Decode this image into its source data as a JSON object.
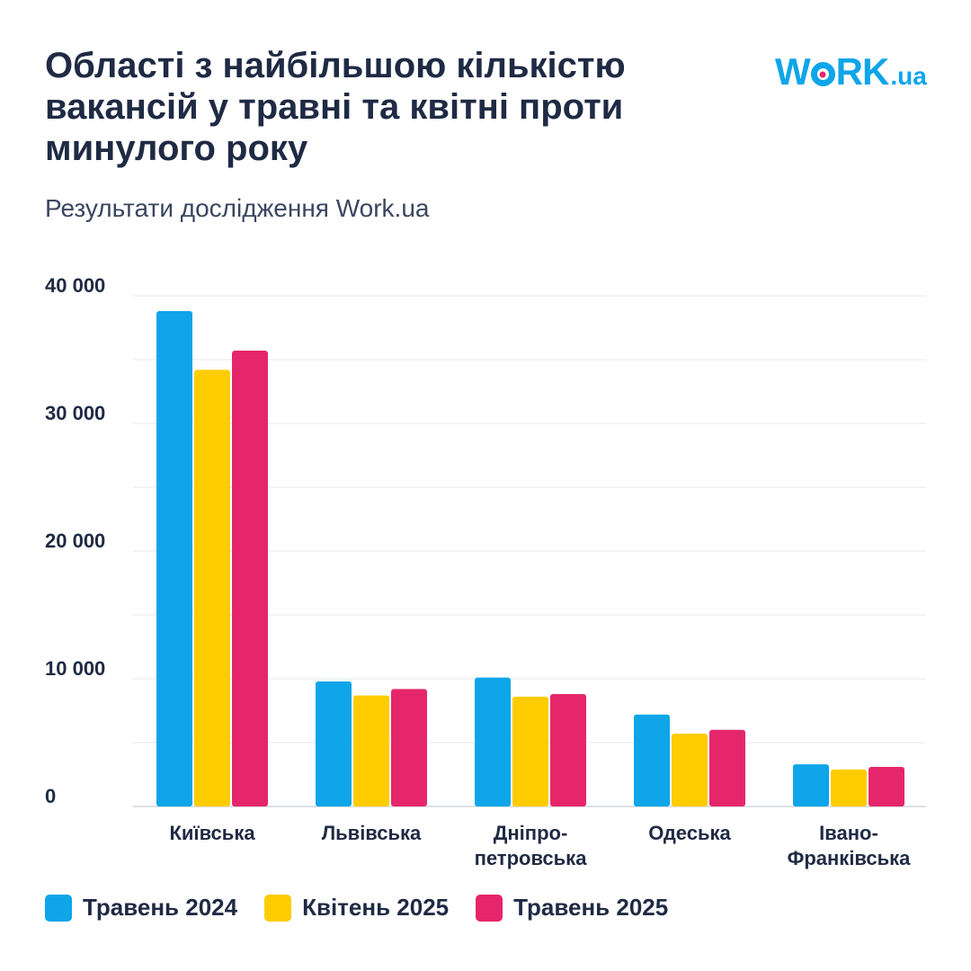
{
  "header": {
    "title": "Області з найбільшою кількістю вакансій у травні та квітні проти минулого року",
    "subtitle": "Результати дослідження Work.ua"
  },
  "logo": {
    "part1": "W",
    "part2": "RK",
    "domain": ".ua"
  },
  "colors": {
    "series1": "#0ea5e9",
    "series2": "#ffcc00",
    "series3": "#e6266a",
    "text": "#1f2a44"
  },
  "chart_data": {
    "type": "bar",
    "categories": [
      [
        "Київська"
      ],
      [
        "Львівська"
      ],
      [
        "Дніпро-",
        "петровська"
      ],
      [
        "Одеська"
      ],
      [
        "Івано-",
        "Франківська"
      ]
    ],
    "series": [
      {
        "name": "Травень 2024",
        "values": [
          38800,
          9800,
          10100,
          7200,
          3300
        ]
      },
      {
        "name": "Квітень 2025",
        "values": [
          34200,
          8700,
          8600,
          5700,
          2900
        ]
      },
      {
        "name": "Травень 2025",
        "values": [
          35700,
          9200,
          8800,
          6000,
          3100
        ]
      }
    ],
    "yticks": [
      {
        "value": 40000,
        "label": "40 000"
      },
      {
        "value": 30000,
        "label": "30 000"
      },
      {
        "value": 20000,
        "label": "20 000"
      },
      {
        "value": 10000,
        "label": "10 000"
      },
      {
        "value": 0,
        "label": "0"
      }
    ],
    "ylim": [
      0,
      40000
    ],
    "minor_gridlines": [
      5000,
      15000,
      25000,
      35000
    ],
    "grid": true,
    "legend_position": "bottom-left"
  }
}
